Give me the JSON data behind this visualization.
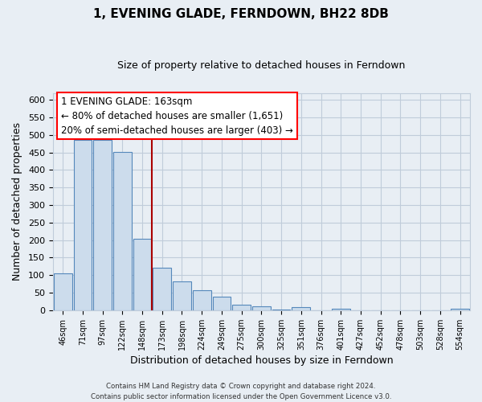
{
  "title": "1, EVENING GLADE, FERNDOWN, BH22 8DB",
  "subtitle": "Size of property relative to detached houses in Ferndown",
  "xlabel": "Distribution of detached houses by size in Ferndown",
  "ylabel": "Number of detached properties",
  "bar_color": "#ccdcec",
  "bar_edge_color": "#5588bb",
  "marker_line_color": "#aa0000",
  "marker_line_index": 5,
  "categories": [
    "46sqm",
    "71sqm",
    "97sqm",
    "122sqm",
    "148sqm",
    "173sqm",
    "198sqm",
    "224sqm",
    "249sqm",
    "275sqm",
    "300sqm",
    "325sqm",
    "351sqm",
    "376sqm",
    "401sqm",
    "427sqm",
    "452sqm",
    "478sqm",
    "503sqm",
    "528sqm",
    "554sqm"
  ],
  "values": [
    105,
    487,
    487,
    452,
    203,
    121,
    83,
    57,
    38,
    16,
    10,
    3,
    8,
    0,
    5,
    0,
    0,
    0,
    0,
    0,
    5
  ],
  "ylim": [
    0,
    620
  ],
  "yticks": [
    0,
    50,
    100,
    150,
    200,
    250,
    300,
    350,
    400,
    450,
    500,
    550,
    600
  ],
  "annotation_title": "1 EVENING GLADE: 163sqm",
  "annotation_line1": "← 80% of detached houses are smaller (1,651)",
  "annotation_line2": "20% of semi-detached houses are larger (403) →",
  "footer_line1": "Contains HM Land Registry data © Crown copyright and database right 2024.",
  "footer_line2": "Contains public sector information licensed under the Open Government Licence v3.0.",
  "background_color": "#e8eef4",
  "plot_bg_color": "#e8eef4",
  "grid_color": "#c0ccda"
}
